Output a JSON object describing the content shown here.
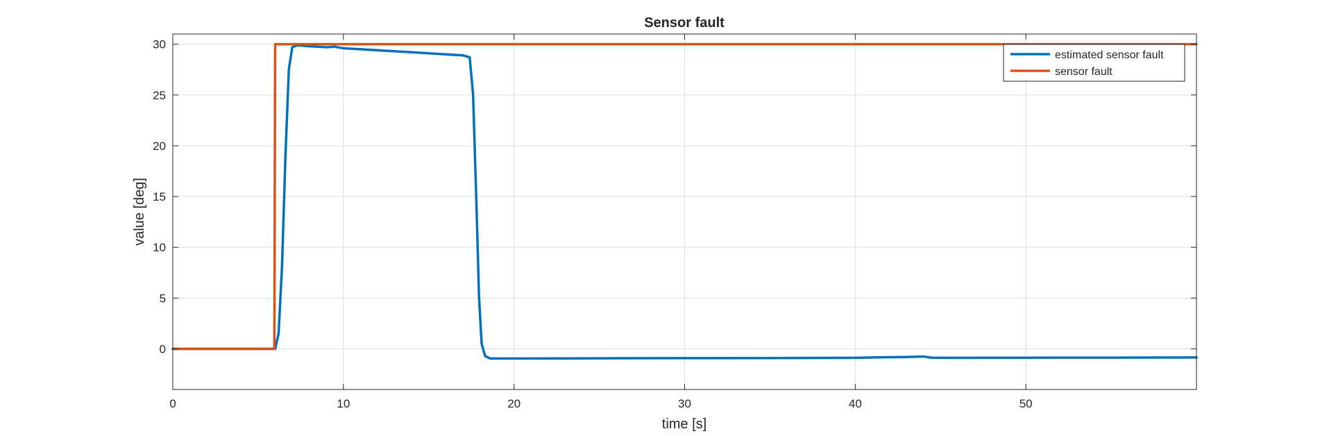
{
  "chart_data": {
    "type": "line",
    "title": "Sensor fault",
    "xlabel": "time [s]",
    "ylabel": "value [deg]",
    "xlim": [
      0,
      60
    ],
    "ylim": [
      -4,
      31
    ],
    "xticks": [
      0,
      10,
      20,
      30,
      40,
      50
    ],
    "yticks": [
      0,
      5,
      10,
      15,
      20,
      25,
      30
    ],
    "grid": true,
    "legend_position": "top-right",
    "series": [
      {
        "name": "estimated sensor fault",
        "color": "#0072BD",
        "x": [
          0,
          6.0,
          6.2,
          6.4,
          6.6,
          6.8,
          7.0,
          7.3,
          8.0,
          9.0,
          9.5,
          10.0,
          12.0,
          14.0,
          16.0,
          17.0,
          17.4,
          17.6,
          17.8,
          17.95,
          18.1,
          18.3,
          18.6,
          20,
          25,
          30,
          35,
          40,
          41,
          42,
          43,
          44,
          44.5,
          45,
          50,
          55,
          60
        ],
        "y": [
          0,
          0,
          1.5,
          8,
          19,
          27.5,
          29.7,
          29.9,
          29.8,
          29.7,
          29.75,
          29.6,
          29.4,
          29.2,
          29.0,
          28.9,
          28.7,
          25,
          14,
          5,
          0.5,
          -0.7,
          -0.95,
          -0.95,
          -0.93,
          -0.92,
          -0.9,
          -0.88,
          -0.85,
          -0.82,
          -0.8,
          -0.75,
          -0.88,
          -0.88,
          -0.87,
          -0.86,
          -0.85
        ]
      },
      {
        "name": "sensor fault",
        "color": "#D95319",
        "x": [
          0,
          5.95,
          6.0,
          60
        ],
        "y": [
          0,
          0,
          30,
          30
        ]
      }
    ]
  }
}
